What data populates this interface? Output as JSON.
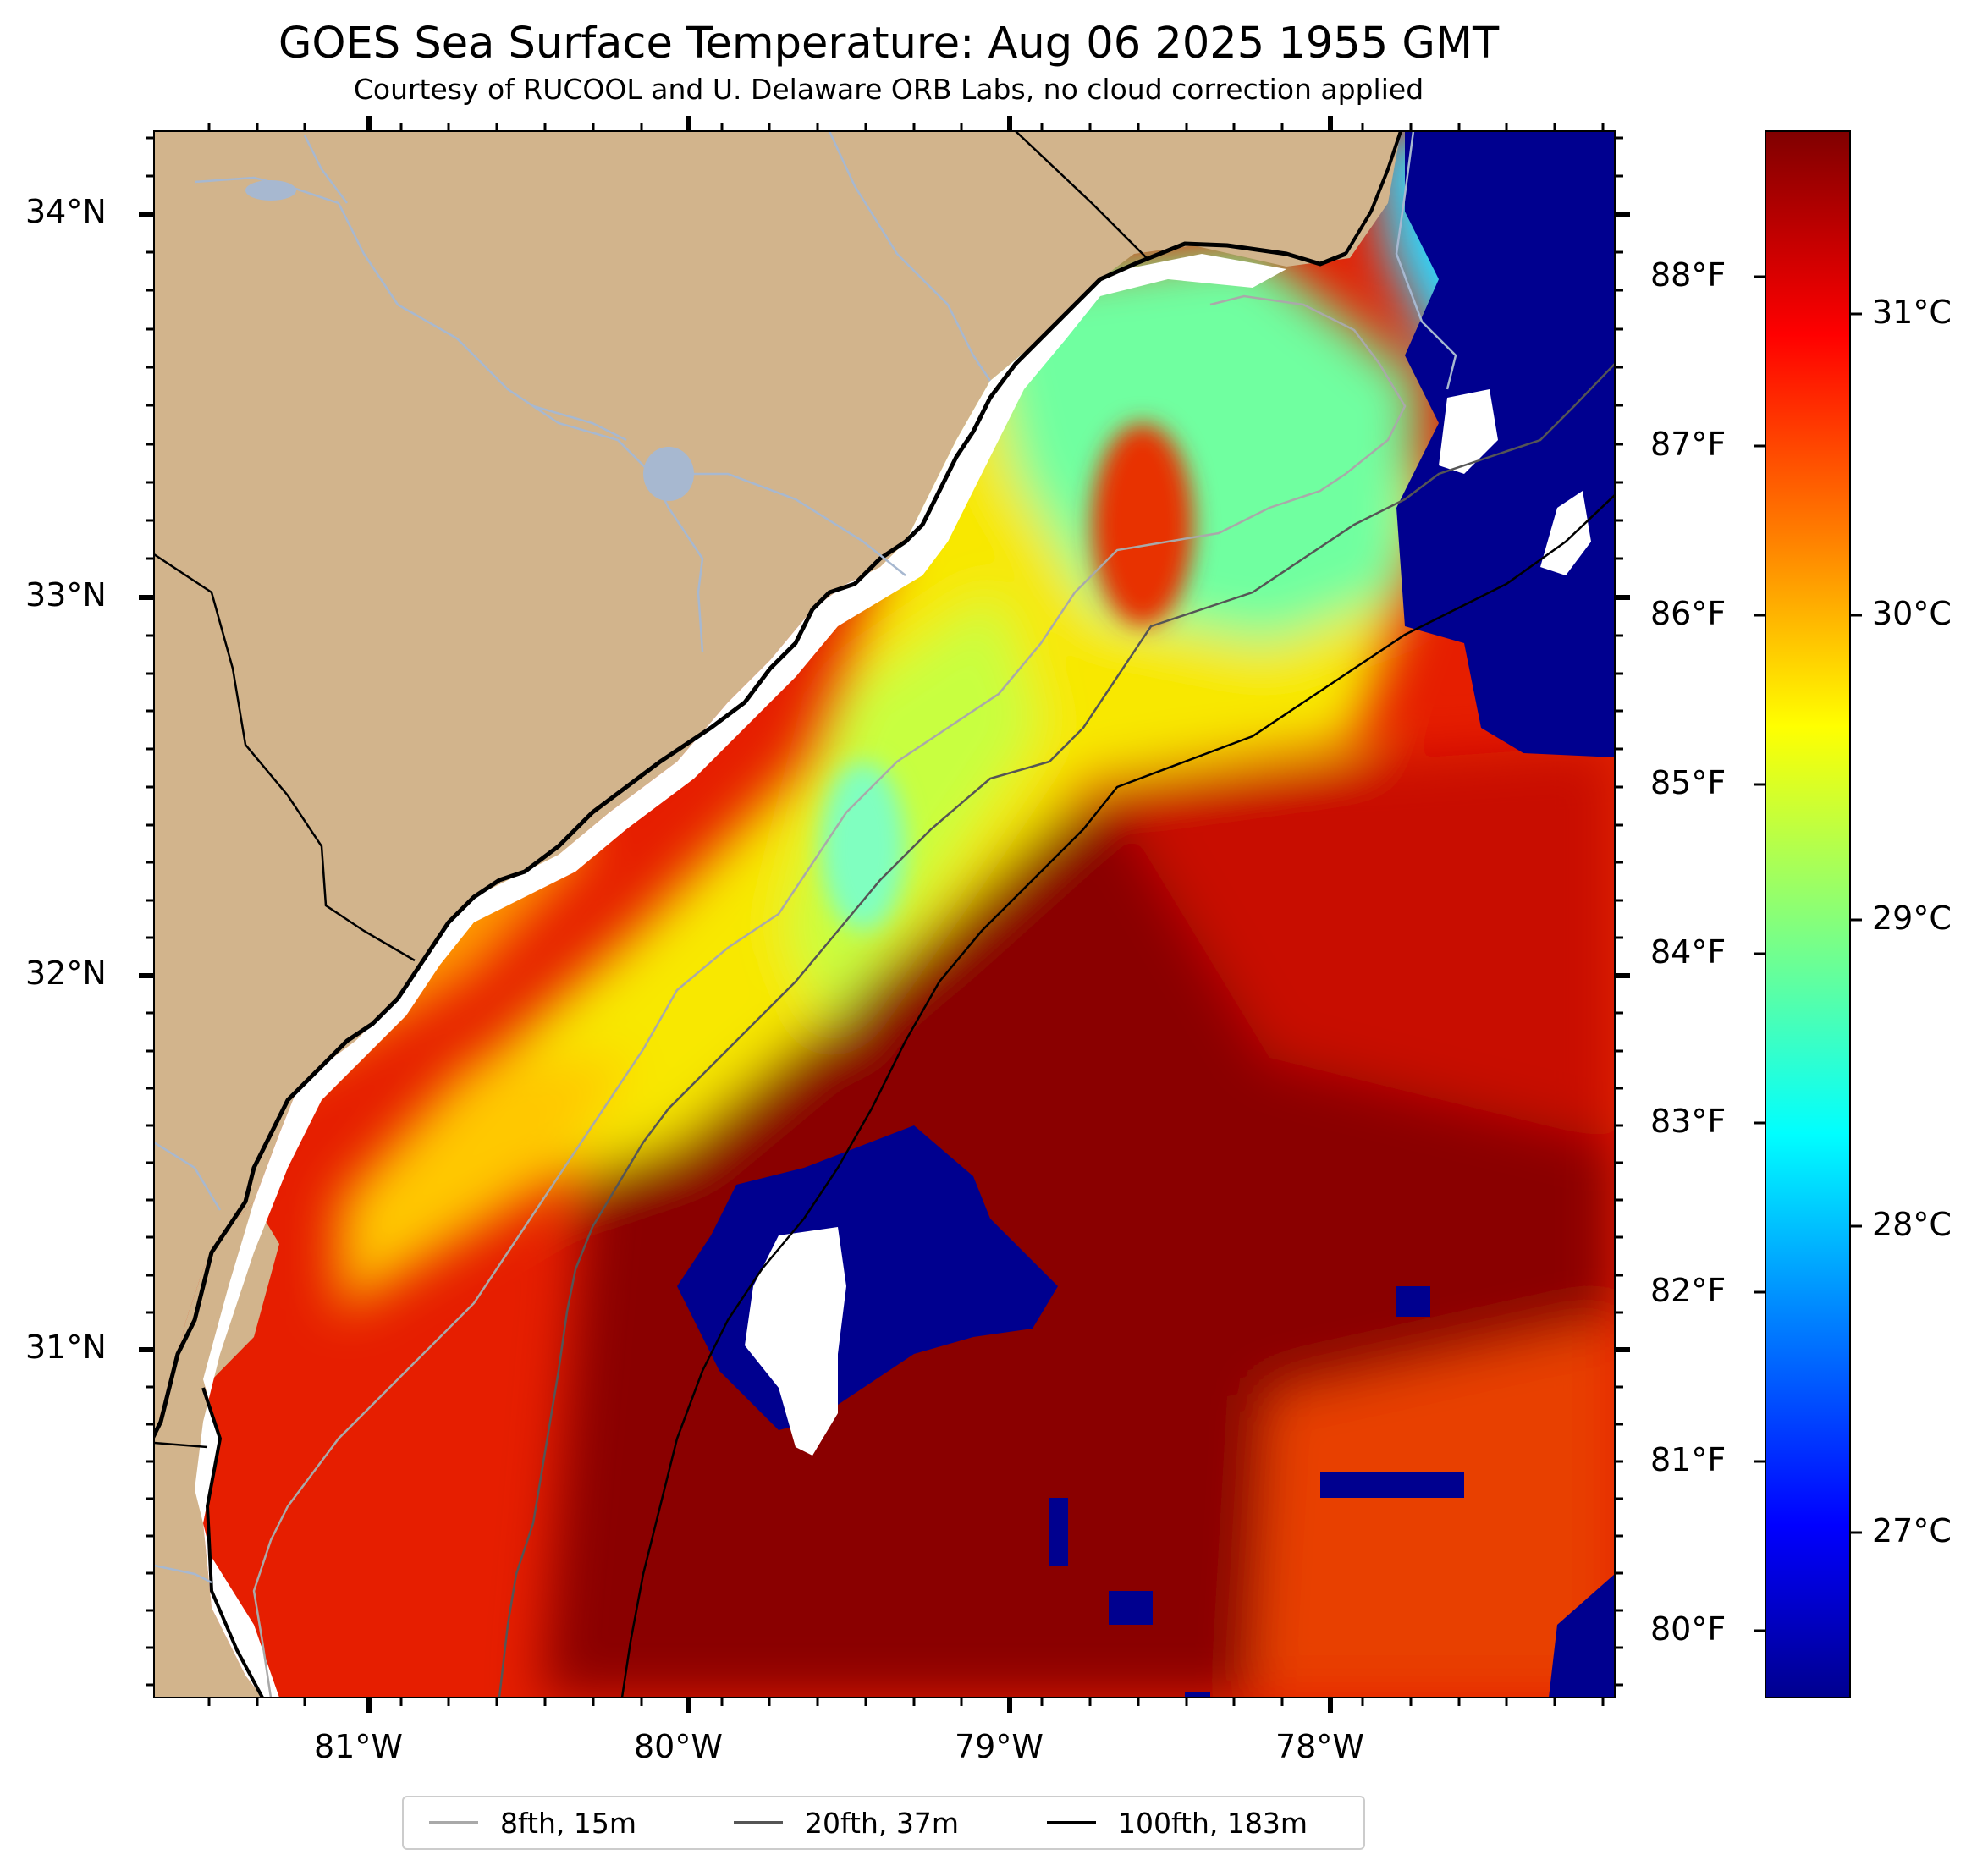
{
  "title": "GOES Sea Surface Temperature: Aug 06 2025 1955 GMT",
  "subtitle": "Courtesy of RUCOOL and U. Delaware ORB Labs, no cloud correction applied",
  "lat_labels": [
    "34°N",
    "33°N",
    "32°N",
    "31°N"
  ],
  "lon_labels": [
    "81°W",
    "80°W",
    "79°W",
    "78°W"
  ],
  "fahrenheit_labels": [
    "88°F",
    "87°F",
    "86°F",
    "85°F",
    "84°F",
    "83°F",
    "82°F",
    "81°F",
    "80°F"
  ],
  "celsius_labels": [
    "31°C",
    "30°C",
    "29°C",
    "28°C",
    "27°C"
  ],
  "legend": [
    {
      "label": "8fth, 15m",
      "color": "#a9a9a9"
    },
    {
      "label": "20fth, 37m",
      "color": "#555555"
    },
    {
      "label": "100fth, 183m",
      "color": "#000000"
    }
  ],
  "colors": {
    "land": "#d2b48c",
    "river": "#a7b8d0",
    "colormap": [
      "#00008f",
      "#0000ff",
      "#0080ff",
      "#00ffff",
      "#80ff80",
      "#ffff00",
      "#ff8000",
      "#ff0000",
      "#800000"
    ]
  }
}
